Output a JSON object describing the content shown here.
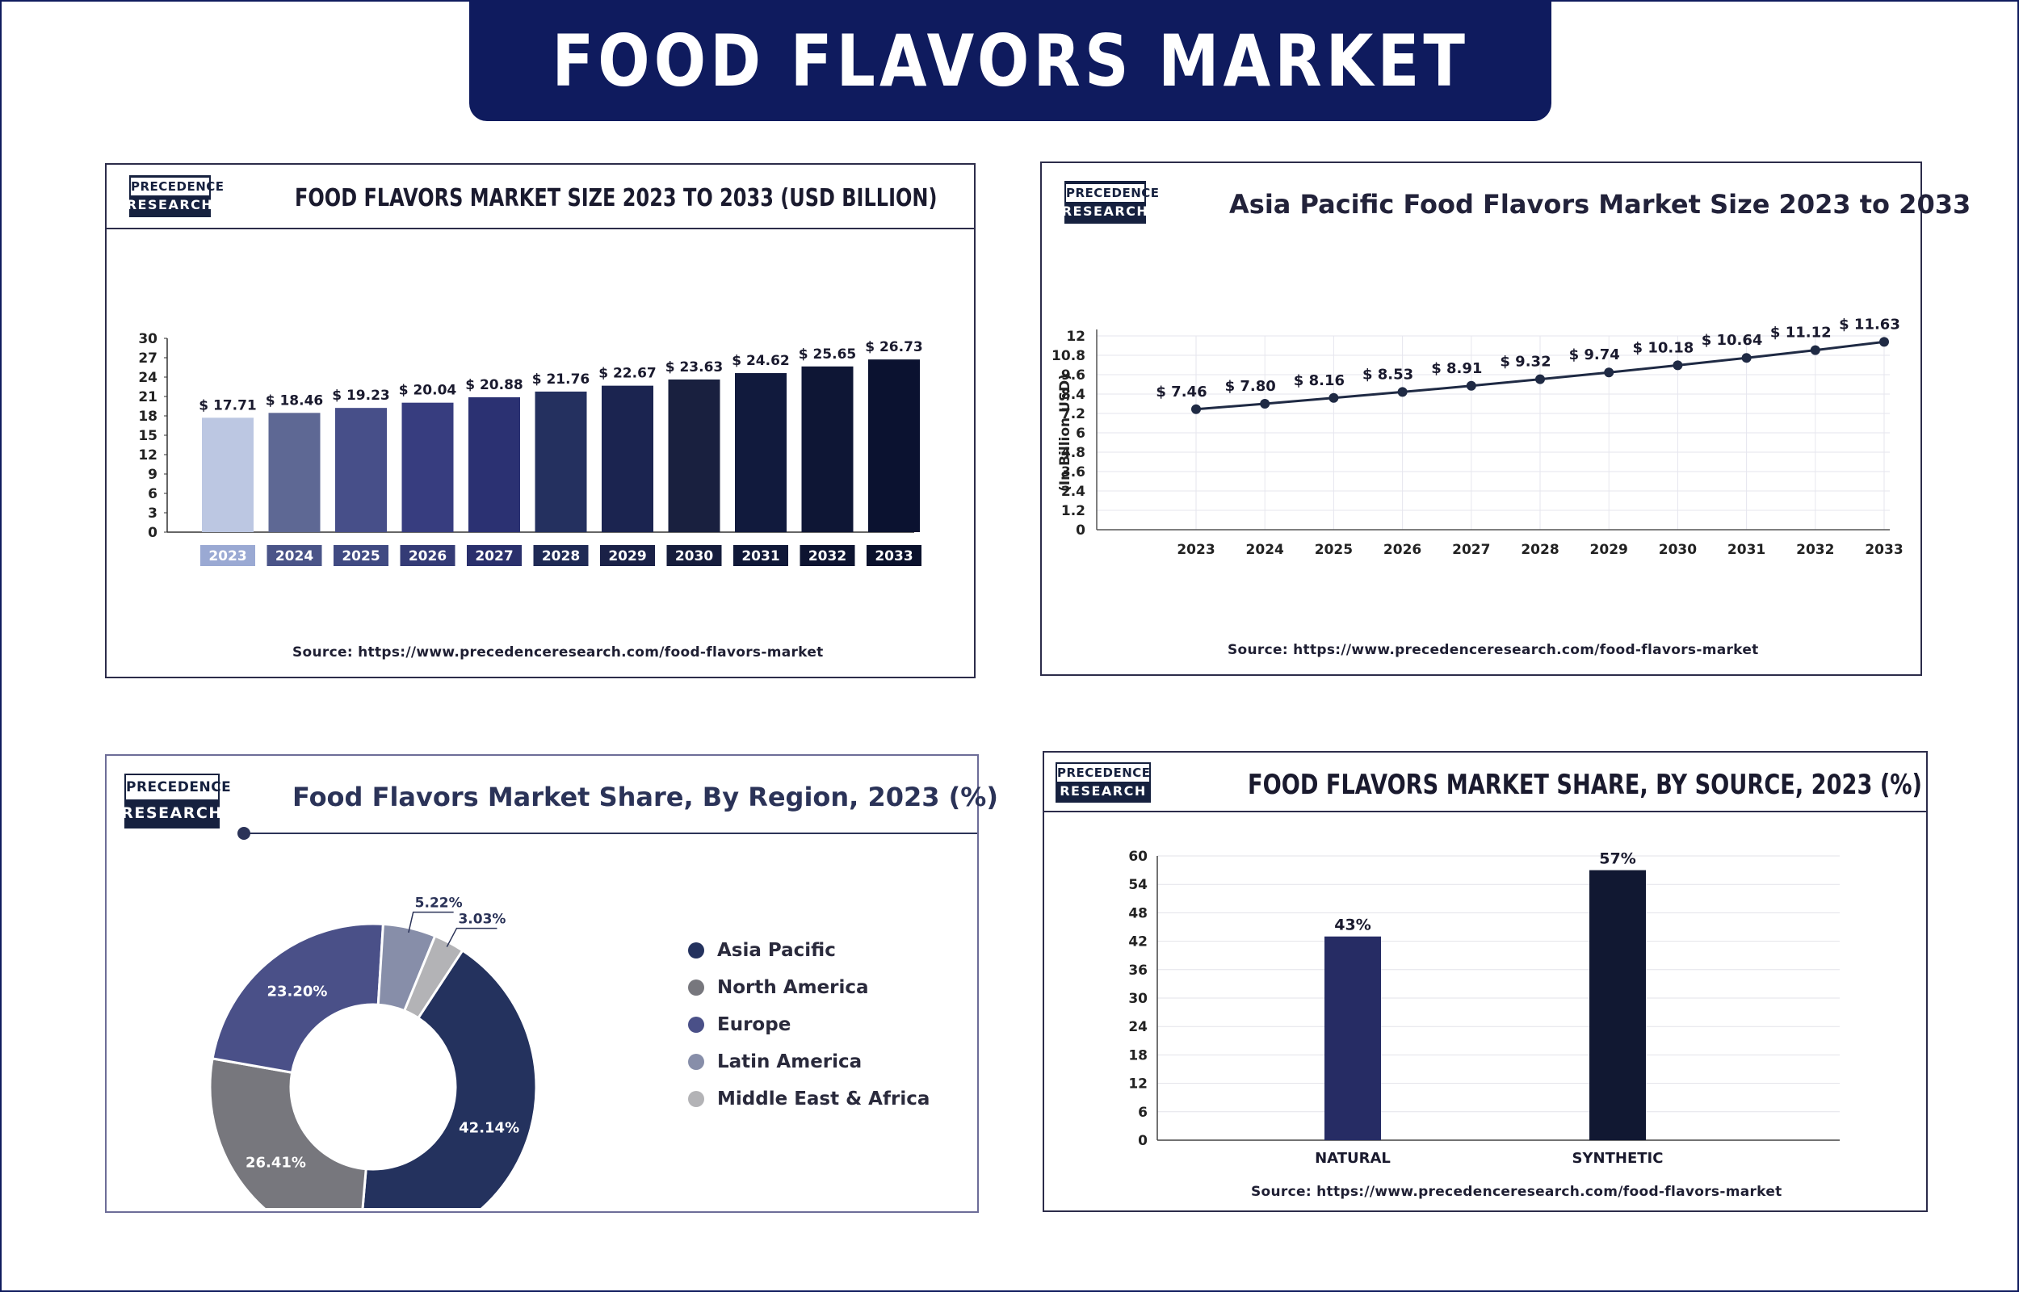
{
  "page_title": "FOOD FLAVORS MARKET",
  "logo": {
    "line1": "PRECEDENCE",
    "line2": "RESEARCH"
  },
  "colors": {
    "navy": "#0f1b5e",
    "frame": "#2c2c4a"
  },
  "panels": {
    "market_size": {
      "title": "FOOD FLAVORS MARKET SIZE 2023 TO 2033 (USD BILLION)",
      "source": "Source: https://www.precedenceresearch.com/food-flavors-market"
    },
    "asia_pacific": {
      "title": "Asia Pacific Food Flavors Market Size 2023 to 2033",
      "source": "Source: https://www.precedenceresearch.com/food-flavors-market"
    },
    "region_share": {
      "title": "Food Flavors Market Share, By Region, 2023 (%)"
    },
    "source_share": {
      "title": "FOOD FLAVORS MARKET SHARE, BY SOURCE, 2023 (%)",
      "source": "Source: https://www.precedenceresearch.com/food-flavors-market"
    }
  },
  "chart_data": [
    {
      "id": "market_size",
      "type": "bar",
      "title": "FOOD FLAVORS MARKET SIZE 2023 TO 2033 (USD BILLION)",
      "categories": [
        "2023",
        "2024",
        "2025",
        "2026",
        "2027",
        "2028",
        "2029",
        "2030",
        "2031",
        "2032",
        "2033"
      ],
      "values": [
        17.71,
        18.46,
        19.23,
        20.04,
        20.88,
        21.76,
        22.67,
        23.63,
        24.62,
        25.65,
        26.73
      ],
      "data_labels": [
        "$ 17.71",
        "$ 18.46",
        "$ 19.23",
        "$ 20.04",
        "$ 20.88",
        "$ 21.76",
        "$ 22.67",
        "$ 23.63",
        "$ 24.62",
        "$ 25.65",
        "$ 26.73"
      ],
      "bar_colors": [
        "#bcc7e2",
        "#5e6894",
        "#474f89",
        "#373d7f",
        "#2b3172",
        "#24305f",
        "#1b2450",
        "#19203f",
        "#111a3d",
        "#0e1635",
        "#0b1230"
      ],
      "label_bg_colors": [
        "#9aa9d3",
        "#4a5488",
        "#404a82",
        "#343b76",
        "#2a306c",
        "#1f2a55",
        "#1a2147",
        "#161d3c",
        "#101838",
        "#0d1431",
        "#0a112c"
      ],
      "yticks": [
        "0",
        "3",
        "6",
        "9",
        "12",
        "15",
        "18",
        "21",
        "24",
        "27",
        "30"
      ],
      "ylim": [
        0,
        30
      ],
      "grid": false
    },
    {
      "id": "asia_pacific",
      "type": "line",
      "title": "Asia Pacific Food Flavors Market Size 2023 to 2033",
      "x": [
        "2023",
        "2024",
        "2025",
        "2026",
        "2027",
        "2028",
        "2029",
        "2030",
        "2031",
        "2032",
        "2033"
      ],
      "values": [
        7.46,
        7.8,
        8.16,
        8.53,
        8.91,
        9.32,
        9.74,
        10.18,
        10.64,
        11.12,
        11.63
      ],
      "data_labels": [
        "$ 7.46",
        "$ 7.80",
        "$ 8.16",
        "$ 8.53",
        "$ 8.91",
        "$ 9.32",
        "$ 9.74",
        "$ 10.18",
        "$ 10.64",
        "$ 11.12",
        "$ 11.63"
      ],
      "ylabel": "(In Billion USD)",
      "yticks": [
        "0",
        "1.2",
        "2.4",
        "3.6",
        "4.8",
        "6",
        "7.2",
        "8.4",
        "9.6",
        "10.8",
        "12"
      ],
      "ylim": [
        0,
        12
      ],
      "grid": true,
      "color": "#1f2a44"
    },
    {
      "id": "region_share",
      "type": "pie",
      "title": "Food Flavors Market Share, By Region, 2023 (%)",
      "categories": [
        "Asia Pacific",
        "North America",
        "Europe",
        "Latin America",
        "Middle East & Africa"
      ],
      "values": [
        42.14,
        26.41,
        23.2,
        5.22,
        3.03
      ],
      "data_labels": [
        "42.14%",
        "26.41%",
        "23.20%",
        "5.22%",
        "3.03%"
      ],
      "colors": [
        "#24325e",
        "#77777d",
        "#4a5088",
        "#878ea9",
        "#b3b3b6"
      ],
      "legend": "right"
    },
    {
      "id": "source_share",
      "type": "bar",
      "title": "FOOD FLAVORS MARKET SHARE, BY SOURCE, 2023 (%)",
      "categories": [
        "NATURAL",
        "SYNTHETIC"
      ],
      "values": [
        43,
        57
      ],
      "data_labels": [
        "43%",
        "57%"
      ],
      "colors": [
        "#262c64",
        "#111832"
      ],
      "yticks": [
        "0",
        "6",
        "12",
        "18",
        "24",
        "30",
        "36",
        "42",
        "48",
        "54",
        "60"
      ],
      "ylim": [
        0,
        60
      ],
      "grid": true
    }
  ]
}
